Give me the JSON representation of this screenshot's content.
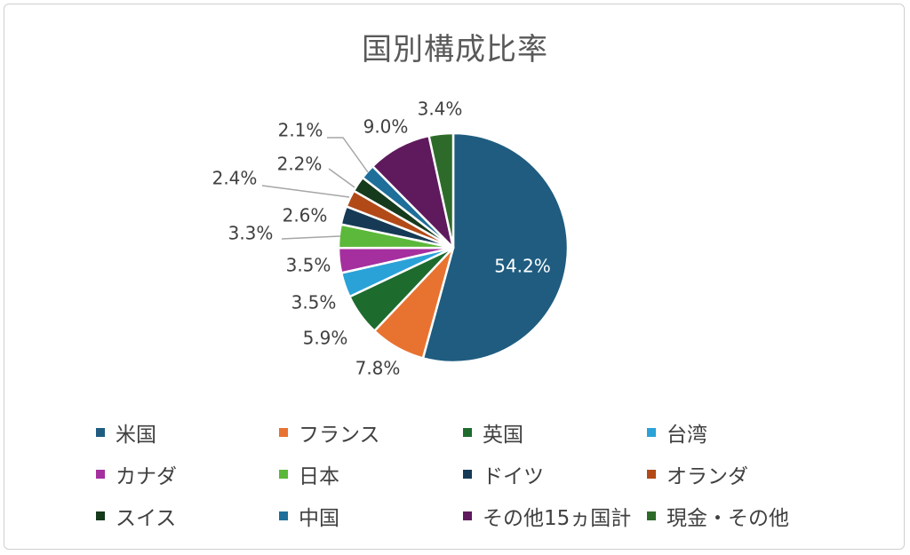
{
  "chart_data": {
    "type": "pie",
    "title": "国別構成比率",
    "categories": [
      "米国",
      "フランス",
      "英国",
      "台湾",
      "カナダ",
      "日本",
      "ドイツ",
      "オランダ",
      "スイス",
      "中国",
      "その他15ヵ国計",
      "現金・その他"
    ],
    "values": [
      54.2,
      7.8,
      5.9,
      3.5,
      3.5,
      3.3,
      2.6,
      2.4,
      2.2,
      2.1,
      9.0,
      3.4
    ],
    "labels": [
      "54.2%",
      "7.8%",
      "5.9%",
      "3.5%",
      "3.5%",
      "3.3%",
      "2.6%",
      "2.4%",
      "2.2%",
      "2.1%",
      "9.0%",
      "3.4%"
    ],
    "colors": [
      "#1F5C80",
      "#E87330",
      "#1E6B2E",
      "#2AA2D8",
      "#A52F9E",
      "#5CB83A",
      "#163A55",
      "#B24A18",
      "#163A1C",
      "#1E6F9A",
      "#5E1A5C",
      "#2E6B2A"
    ],
    "legend_position": "bottom"
  }
}
